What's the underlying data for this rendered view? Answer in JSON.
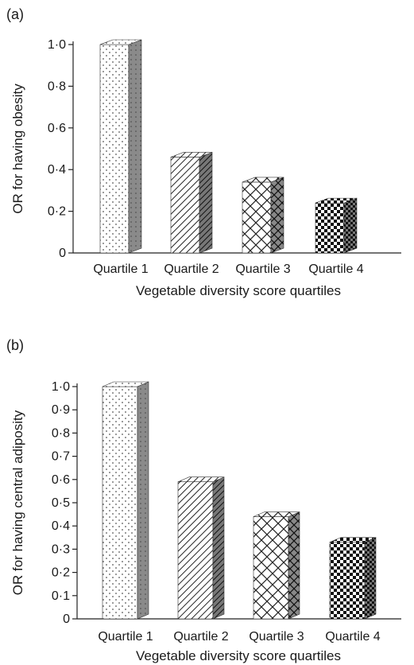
{
  "chart_data": [
    {
      "type": "bar",
      "panel_label": "(a)",
      "categories": [
        "Quartile 1",
        "Quartile 2",
        "Quartile 3",
        "Quartile 4"
      ],
      "values": [
        1.0,
        0.46,
        0.34,
        0.24
      ],
      "xlabel": "Vegetable diversity score quartiles",
      "ylabel": "OR for having obesity",
      "ylim": [
        0,
        1.0
      ],
      "yticks": [
        0,
        0.2,
        0.4,
        0.6,
        0.8,
        1.0
      ],
      "ytick_labels": [
        "0",
        "0·2",
        "0·4",
        "0·6",
        "0·8",
        "1·0"
      ],
      "bar_patterns": [
        "dots",
        "diagonal",
        "crosshatch",
        "checker"
      ],
      "style": "3d",
      "grid": false
    },
    {
      "type": "bar",
      "panel_label": "(b)",
      "categories": [
        "Quartile 1",
        "Quartile 2",
        "Quartile 3",
        "Quartile 4"
      ],
      "values": [
        1.0,
        0.59,
        0.44,
        0.33
      ],
      "xlabel": "Vegetable diversity score quartiles",
      "ylabel": "OR for having central adiposity",
      "ylim": [
        0,
        1.0
      ],
      "yticks": [
        0,
        0.1,
        0.2,
        0.3,
        0.4,
        0.5,
        0.6,
        0.7,
        0.8,
        0.9,
        1.0
      ],
      "ytick_labels": [
        "0",
        "0·1",
        "0·2",
        "0·3",
        "0·4",
        "0·5",
        "0·6",
        "0·7",
        "0·8",
        "0·9",
        "1·0"
      ],
      "bar_patterns": [
        "dots",
        "diagonal",
        "crosshatch",
        "checker"
      ],
      "style": "3d",
      "grid": false
    }
  ]
}
